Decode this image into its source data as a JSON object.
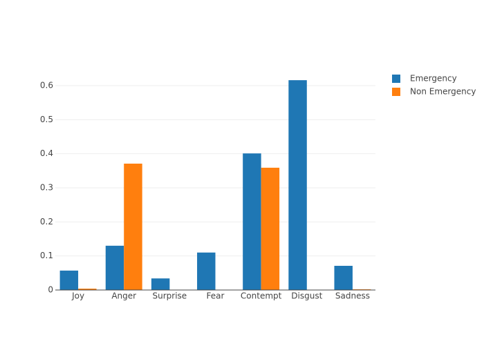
{
  "chart_data": {
    "type": "bar",
    "categories": [
      "Joy",
      "Anger",
      "Surprise",
      "Fear",
      "Contempt",
      "Disgust",
      "Sadness"
    ],
    "series": [
      {
        "name": "Emergency",
        "color": "#1f77b4",
        "values": [
          0.057,
          0.13,
          0.034,
          0.11,
          0.401,
          0.616,
          0.071
        ]
      },
      {
        "name": "Non Emergency",
        "color": "#ff7f0e",
        "values": [
          0.004,
          0.371,
          0,
          0,
          0.359,
          0,
          0.002
        ]
      }
    ],
    "ylim": [
      0,
      0.65
    ],
    "yticks": [
      0,
      0.1,
      0.2,
      0.3,
      0.4,
      0.5,
      0.6
    ],
    "grid": true
  }
}
